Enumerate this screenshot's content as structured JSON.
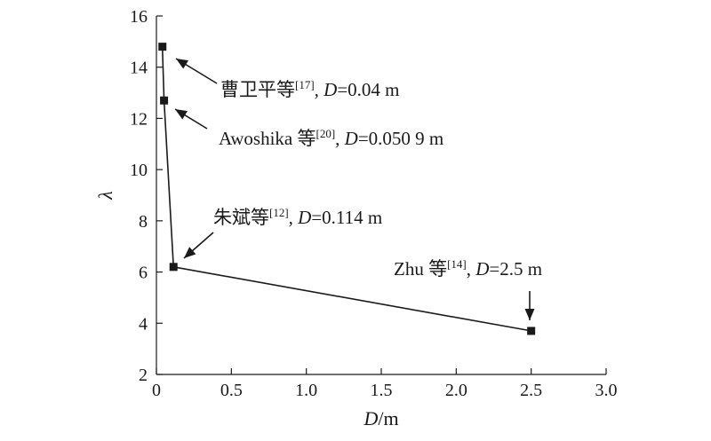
{
  "chart_data": {
    "type": "line",
    "xlabel": {
      "var": "D",
      "unit": "/m"
    },
    "ylabel": "λ",
    "xlim": [
      0,
      3.0
    ],
    "ylim": [
      2,
      16
    ],
    "xticks": [
      "0",
      "0.5",
      "1.0",
      "1.5",
      "2.0",
      "2.5",
      "3.0"
    ],
    "yticks": [
      "2",
      "4",
      "6",
      "8",
      "10",
      "12",
      "14",
      "16"
    ],
    "grid": false,
    "points": [
      {
        "x": 0.04,
        "y": 14.8
      },
      {
        "x": 0.0509,
        "y": 12.7
      },
      {
        "x": 0.114,
        "y": 6.2
      },
      {
        "x": 2.5,
        "y": 3.7
      }
    ],
    "annotations": [
      {
        "author": "曹卫平等",
        "ref": "[17]",
        "rest": ", D=0.04 m"
      },
      {
        "author": "Awoshika 等",
        "ref": "[20]",
        "rest": ", D=0.050 9 m"
      },
      {
        "author": "朱斌等",
        "ref": "[12]",
        "rest": ", D=0.114 m"
      },
      {
        "author": "Zhu 等",
        "ref": "[14]",
        "rest": ", D=2.5 m"
      }
    ]
  }
}
